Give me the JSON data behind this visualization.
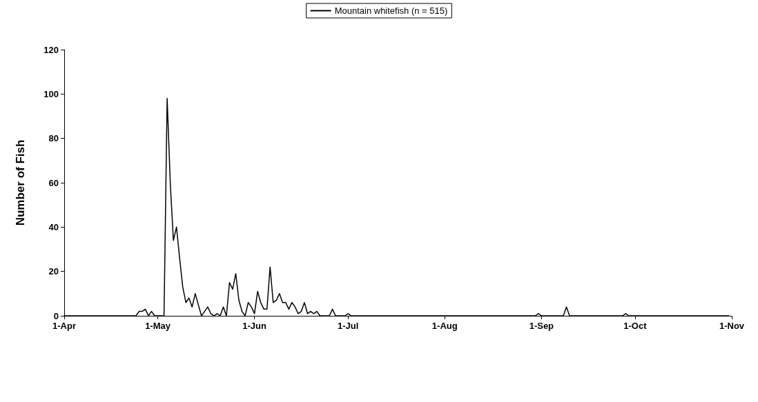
{
  "chart_data": {
    "type": "line",
    "ylabel": "Number of Fish",
    "legend": "top",
    "grid": false,
    "marker": "none",
    "line_style": "solid",
    "xlim": [
      "--04-01",
      "--11-01"
    ],
    "ylim": [
      0,
      120
    ],
    "yticks": [
      0,
      20,
      40,
      60,
      80,
      100,
      120
    ],
    "xticks": [
      {
        "value": "--04-01",
        "label": "1-Apr"
      },
      {
        "value": "--05-01",
        "label": "1-May"
      },
      {
        "value": "--06-01",
        "label": "1-Jun"
      },
      {
        "value": "--07-01",
        "label": "1-Jul"
      },
      {
        "value": "--08-01",
        "label": "1-Aug"
      },
      {
        "value": "--09-01",
        "label": "1-Sep"
      },
      {
        "value": "--10-01",
        "label": "1-Oct"
      },
      {
        "value": "--11-01",
        "label": "1-Nov"
      }
    ],
    "series": [
      {
        "name": "Mountain whitefish (n = 515)",
        "color": "#000000",
        "x": [
          "--04-01",
          "--04-24",
          "--04-25",
          "--04-26",
          "--04-27",
          "--04-28",
          "--04-29",
          "--04-30",
          "--05-03",
          "--05-04",
          "--05-05",
          "--05-06",
          "--05-07",
          "--05-08",
          "--05-09",
          "--05-10",
          "--05-11",
          "--05-12",
          "--05-13",
          "--05-14",
          "--05-15",
          "--05-16",
          "--05-17",
          "--05-18",
          "--05-19",
          "--05-20",
          "--05-21",
          "--05-22",
          "--05-23",
          "--05-24",
          "--05-25",
          "--05-26",
          "--05-27",
          "--05-28",
          "--05-29",
          "--05-30",
          "--05-31",
          "--06-01",
          "--06-02",
          "--06-03",
          "--06-04",
          "--06-05",
          "--06-06",
          "--06-07",
          "--06-08",
          "--06-09",
          "--06-10",
          "--06-11",
          "--06-12",
          "--06-13",
          "--06-14",
          "--06-15",
          "--06-16",
          "--06-17",
          "--06-18",
          "--06-19",
          "--06-20",
          "--06-21",
          "--06-22",
          "--06-25",
          "--06-26",
          "--06-27",
          "--06-30",
          "--07-01",
          "--07-02",
          "--08-30",
          "--08-31",
          "--09-01",
          "--09-08",
          "--09-09",
          "--09-10",
          "--09-27",
          "--09-28",
          "--09-29",
          "--10-31"
        ],
        "values": [
          0,
          0,
          2,
          2,
          3,
          0,
          2,
          0,
          0,
          98,
          60,
          34,
          40,
          26,
          13,
          6,
          8,
          4,
          10,
          5,
          0,
          2,
          4,
          1,
          0,
          1,
          0,
          4,
          0,
          15,
          12,
          19,
          7,
          2,
          0,
          6,
          4,
          1,
          11,
          6,
          3,
          3,
          22,
          6,
          7,
          10,
          6,
          6,
          3,
          6,
          4,
          1,
          2,
          6,
          1,
          2,
          1,
          2,
          0,
          0,
          3,
          0,
          0,
          1,
          0,
          0,
          1,
          0,
          0,
          4,
          0,
          0,
          1,
          0,
          0
        ]
      }
    ]
  }
}
